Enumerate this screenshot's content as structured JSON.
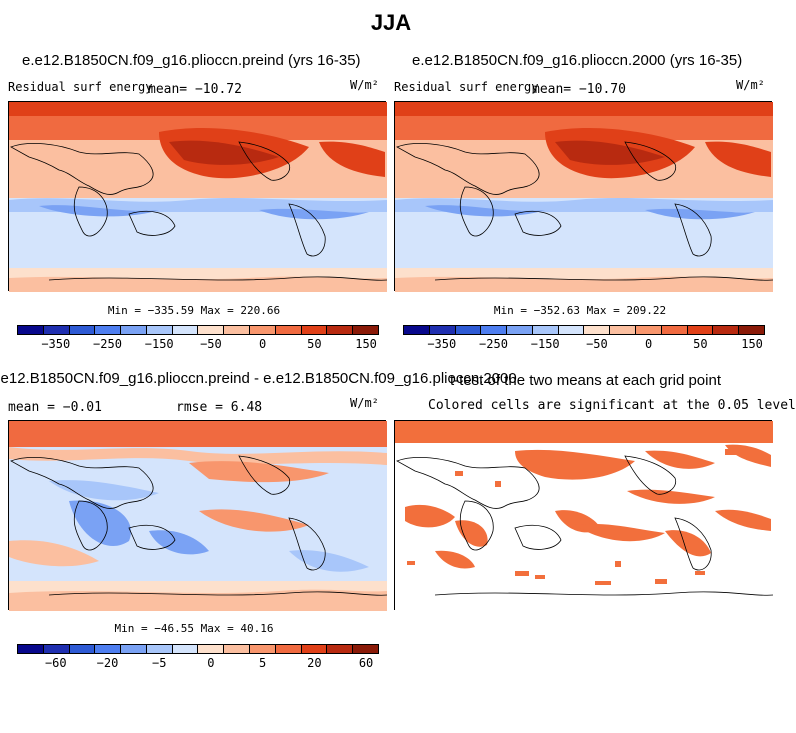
{
  "title": "JJA",
  "colorbar_colors": [
    "#08088c",
    "#1f2fb0",
    "#2e5ad4",
    "#4e7ef0",
    "#7aa2f4",
    "#a8c6fa",
    "#d4e4fc",
    "#fde0cc",
    "#fbbfa0",
    "#f8966d",
    "#f06a40",
    "#e04018",
    "#b82a10",
    "#8a1a08"
  ],
  "panels": {
    "top_left": {
      "title": "e.e12.B1850CN.f09_g16.plioccn.preind (yrs 16-35)",
      "left_label": "Residual surf energy",
      "mean_label": "mean= −10.72",
      "units": "W/m²",
      "stats": "Min = −335.59 Max = 220.66",
      "ticks": [
        "−350",
        "−250",
        "−150",
        "−50",
        "0",
        "50",
        "150"
      ]
    },
    "top_right": {
      "title": "e.e12.B1850CN.f09_g16.plioccn.2000 (yrs 16-35)",
      "left_label": "Residual surf energy",
      "mean_label": "mean= −10.70",
      "units": "W/m²",
      "stats": "Min = −352.63 Max = 209.22",
      "ticks": [
        "−350",
        "−250",
        "−150",
        "−50",
        "0",
        "50",
        "150"
      ]
    },
    "bottom_left": {
      "title": "e.e12.B1850CN.f09_g16.plioccn.preind - e.e12.B1850CN.f09_g16.plioccn.2000",
      "mean_label": "mean =   −0.01",
      "rmse_label": "rmse =    6.48",
      "units": "W/m²",
      "stats": "Min = −46.55 Max =  40.16",
      "ticks": [
        "−60",
        "−20",
        "−5",
        "0",
        "5",
        "20",
        "60"
      ]
    },
    "bottom_right": {
      "title": "t-test of the two means at each grid point",
      "subtitle": "Colored cells are significant at the 0.05 level",
      "significant_color": "#f26f3c"
    }
  }
}
